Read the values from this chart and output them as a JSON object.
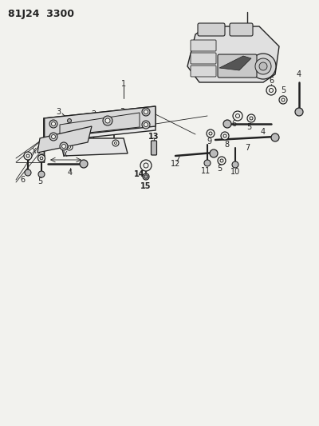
{
  "title": "81J24  3300",
  "bg_color": "#f2f2ee",
  "line_color": "#222222",
  "fig_width": 4.0,
  "fig_height": 5.33,
  "dpi": 100
}
